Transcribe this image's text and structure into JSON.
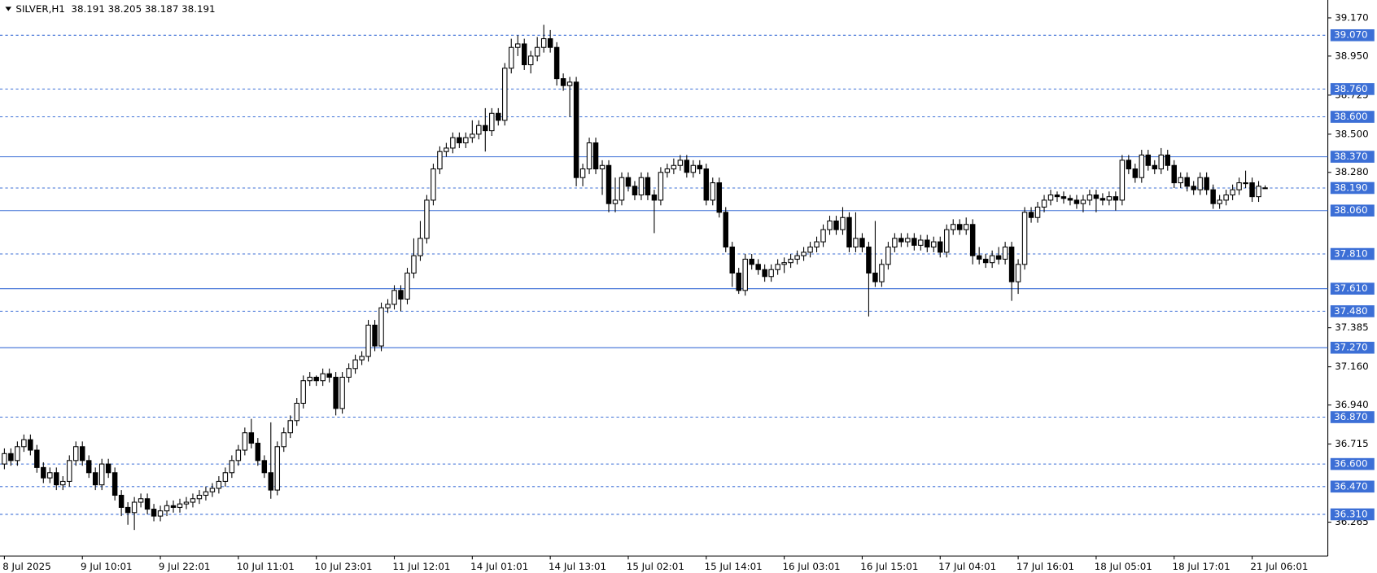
{
  "chart_data": {
    "type": "candlestick",
    "title": "SILVER,H1",
    "subtitle": "38.191 38.205 38.187 38.191",
    "categories": [
      "8 Jul 2025",
      null,
      null,
      null,
      null,
      null,
      null,
      null,
      null,
      null,
      null,
      null,
      "9 Jul 10:01",
      null,
      null,
      null,
      null,
      null,
      null,
      null,
      null,
      null,
      null,
      null,
      "9 Jul 22:01",
      null,
      null,
      null,
      null,
      null,
      null,
      null,
      null,
      null,
      null,
      null,
      "10 Jul 11:01",
      null,
      null,
      null,
      null,
      null,
      null,
      null,
      null,
      null,
      null,
      null,
      "10 Jul 23:01",
      null,
      null,
      null,
      null,
      null,
      null,
      null,
      null,
      null,
      null,
      null,
      "11 Jul 12:01",
      null,
      null,
      null,
      null,
      null,
      null,
      null,
      null,
      null,
      null,
      null,
      "14 Jul 01:01",
      null,
      null,
      null,
      null,
      null,
      null,
      null,
      null,
      null,
      null,
      null,
      "14 Jul 13:01",
      null,
      null,
      null,
      null,
      null,
      null,
      null,
      null,
      null,
      null,
      null,
      "15 Jul 02:01",
      null,
      null,
      null,
      null,
      null,
      null,
      null,
      null,
      null,
      null,
      null,
      "15 Jul 14:01",
      null,
      null,
      null,
      null,
      null,
      null,
      null,
      null,
      null,
      null,
      null,
      "16 Jul 03:01",
      null,
      null,
      null,
      null,
      null,
      null,
      null,
      null,
      null,
      null,
      null,
      "16 Jul 15:01",
      null,
      null,
      null,
      null,
      null,
      null,
      null,
      null,
      null,
      null,
      null,
      "17 Jul 04:01",
      null,
      null,
      null,
      null,
      null,
      null,
      null,
      null,
      null,
      null,
      null,
      "17 Jul 16:01",
      null,
      null,
      null,
      null,
      null,
      null,
      null,
      null,
      null,
      null,
      null,
      "18 Jul 05:01",
      null,
      null,
      null,
      null,
      null,
      null,
      null,
      null,
      null,
      null,
      null,
      "18 Jul 17:01",
      null,
      null,
      null,
      null,
      null,
      null,
      null,
      null,
      null,
      null,
      null,
      "21 Jul 06:01",
      null,
      null
    ],
    "open": [
      36.6,
      36.66,
      36.62,
      36.7,
      36.74,
      36.68,
      36.58,
      36.52,
      36.55,
      36.48,
      36.5,
      36.62,
      36.7,
      36.62,
      36.55,
      36.48,
      36.6,
      36.55,
      36.42,
      36.35,
      36.32,
      36.38,
      36.4,
      36.34,
      36.3,
      36.33,
      36.36,
      36.35,
      36.37,
      36.38,
      36.4,
      36.42,
      36.44,
      36.46,
      36.5,
      36.55,
      36.62,
      36.68,
      36.78,
      36.72,
      36.62,
      36.55,
      36.45,
      36.7,
      36.78,
      36.85,
      36.95,
      37.08,
      37.1,
      37.08,
      37.12,
      37.1,
      36.92,
      37.1,
      37.15,
      37.2,
      37.22,
      37.4,
      37.28,
      37.5,
      37.52,
      37.6,
      37.55,
      37.7,
      37.8,
      37.9,
      38.12,
      38.3,
      38.4,
      38.42,
      38.48,
      38.45,
      38.48,
      38.5,
      38.55,
      38.52,
      38.62,
      38.58,
      38.88,
      39.0,
      39.02,
      38.9,
      38.95,
      39.0,
      39.05,
      39.0,
      38.82,
      38.78,
      38.8,
      38.25,
      38.3,
      38.45,
      38.3,
      38.32,
      38.1,
      38.12,
      38.25,
      38.2,
      38.15,
      38.25,
      38.15,
      38.12,
      38.28,
      38.3,
      38.32,
      38.35,
      38.28,
      38.32,
      38.3,
      38.12,
      38.22,
      38.05,
      37.85,
      37.7,
      37.6,
      37.78,
      37.75,
      37.72,
      37.68,
      37.72,
      37.75,
      37.76,
      37.78,
      37.8,
      37.82,
      37.85,
      37.88,
      37.95,
      38.0,
      37.95,
      38.02,
      37.85,
      37.9,
      37.85,
      37.7,
      37.65,
      37.75,
      37.85,
      37.9,
      37.88,
      37.9,
      37.86,
      37.89,
      37.85,
      37.88,
      37.82,
      37.95,
      37.98,
      37.95,
      37.98,
      37.8,
      37.78,
      37.76,
      37.8,
      37.78,
      37.85,
      37.65,
      37.75,
      38.05,
      38.02,
      38.08,
      38.12,
      38.15,
      38.14,
      38.13,
      38.12,
      38.1,
      38.12,
      38.15,
      38.13,
      38.12,
      38.14,
      38.12,
      38.35,
      38.3,
      38.25,
      38.38,
      38.32,
      38.3,
      38.38,
      38.32,
      38.22,
      38.25,
      38.2,
      38.18,
      38.25,
      38.18,
      38.1,
      38.12,
      38.15,
      38.18,
      38.22,
      38.22,
      38.14,
      38.191
    ],
    "high": [
      36.69,
      36.69,
      36.73,
      36.77,
      36.77,
      36.71,
      36.61,
      36.58,
      36.58,
      36.53,
      36.65,
      36.73,
      36.73,
      36.65,
      36.58,
      36.63,
      36.63,
      36.58,
      36.45,
      36.38,
      36.41,
      36.43,
      36.43,
      36.37,
      36.36,
      36.39,
      36.39,
      36.4,
      36.41,
      36.43,
      36.45,
      36.47,
      36.49,
      36.53,
      36.58,
      36.65,
      36.71,
      36.81,
      36.86,
      36.75,
      36.65,
      36.84,
      36.73,
      36.81,
      36.88,
      36.98,
      37.11,
      37.13,
      37.11,
      37.15,
      37.15,
      37.13,
      37.13,
      37.18,
      37.23,
      37.25,
      37.43,
      37.43,
      37.53,
      37.55,
      37.63,
      37.63,
      37.73,
      37.9,
      38.0,
      38.15,
      38.33,
      38.43,
      38.45,
      38.51,
      38.51,
      38.51,
      38.58,
      38.58,
      38.65,
      38.65,
      38.65,
      38.91,
      39.05,
      39.07,
      39.05,
      38.98,
      39.06,
      39.13,
      39.1,
      39.03,
      38.85,
      38.83,
      38.83,
      38.33,
      38.48,
      38.48,
      38.35,
      38.35,
      38.25,
      38.28,
      38.28,
      38.23,
      38.28,
      38.28,
      38.18,
      38.31,
      38.33,
      38.36,
      38.38,
      38.38,
      38.35,
      38.35,
      38.33,
      38.25,
      38.25,
      38.08,
      37.88,
      37.73,
      37.81,
      37.81,
      37.78,
      37.75,
      37.75,
      37.78,
      37.79,
      37.81,
      37.83,
      37.85,
      37.88,
      37.91,
      37.98,
      38.03,
      38.03,
      38.08,
      38.05,
      38.05,
      37.93,
      37.88,
      38.0,
      37.78,
      37.88,
      37.93,
      37.93,
      37.93,
      37.93,
      37.92,
      37.92,
      37.91,
      37.91,
      37.98,
      38.01,
      38.01,
      38.02,
      38.01,
      37.85,
      37.81,
      37.83,
      37.85,
      37.88,
      37.88,
      37.78,
      38.08,
      38.08,
      38.11,
      38.15,
      38.18,
      38.17,
      38.17,
      38.15,
      38.15,
      38.15,
      38.18,
      38.18,
      38.16,
      38.17,
      38.17,
      38.38,
      38.38,
      38.33,
      38.41,
      38.41,
      38.35,
      38.42,
      38.41,
      38.35,
      38.28,
      38.28,
      38.23,
      38.28,
      38.28,
      38.21,
      38.15,
      38.18,
      38.21,
      38.25,
      38.29,
      38.25,
      38.23,
      38.205
    ],
    "low": [
      36.57,
      36.59,
      36.59,
      36.67,
      36.65,
      36.55,
      36.49,
      36.49,
      36.45,
      36.45,
      36.47,
      36.59,
      36.59,
      36.52,
      36.45,
      36.45,
      36.52,
      36.39,
      36.3,
      36.25,
      36.22,
      36.35,
      36.31,
      36.27,
      36.27,
      36.3,
      36.32,
      36.32,
      36.34,
      36.35,
      36.37,
      36.39,
      36.41,
      36.43,
      36.47,
      36.52,
      36.59,
      36.65,
      36.69,
      36.59,
      36.52,
      36.4,
      36.42,
      36.67,
      36.75,
      36.82,
      36.92,
      37.05,
      37.05,
      37.05,
      37.07,
      36.88,
      36.89,
      37.07,
      37.12,
      37.17,
      37.19,
      37.25,
      37.25,
      37.47,
      37.49,
      37.48,
      37.52,
      37.67,
      37.77,
      37.87,
      38.09,
      38.27,
      38.37,
      38.39,
      38.42,
      38.42,
      38.45,
      38.47,
      38.4,
      38.49,
      38.55,
      38.55,
      38.85,
      38.95,
      38.87,
      38.85,
      38.92,
      38.97,
      38.97,
      38.78,
      38.75,
      38.6,
      38.2,
      38.2,
      38.27,
      38.27,
      38.15,
      38.05,
      38.05,
      38.09,
      38.17,
      38.12,
      38.12,
      38.12,
      37.93,
      38.09,
      38.25,
      38.27,
      38.29,
      38.25,
      38.25,
      38.27,
      38.09,
      38.09,
      38.02,
      37.82,
      37.62,
      37.58,
      37.57,
      37.72,
      37.69,
      37.65,
      37.65,
      37.69,
      37.7,
      37.73,
      37.75,
      37.77,
      37.79,
      37.82,
      37.85,
      37.92,
      37.92,
      37.92,
      37.82,
      37.82,
      37.82,
      37.45,
      37.62,
      37.62,
      37.72,
      37.82,
      37.85,
      37.85,
      37.83,
      37.83,
      37.82,
      37.82,
      37.79,
      37.79,
      37.92,
      37.92,
      37.92,
      37.75,
      37.75,
      37.73,
      37.73,
      37.75,
      37.75,
      37.54,
      37.58,
      37.72,
      37.99,
      37.99,
      38.05,
      38.09,
      38.11,
      38.1,
      38.09,
      38.07,
      38.05,
      38.09,
      38.05,
      38.09,
      38.09,
      38.06,
      38.09,
      38.27,
      38.22,
      38.22,
      38.29,
      38.27,
      38.27,
      38.29,
      38.19,
      38.19,
      38.17,
      38.15,
      38.15,
      38.15,
      38.07,
      38.07,
      38.09,
      38.12,
      38.15,
      38.19,
      38.11,
      38.11,
      38.187
    ],
    "close": [
      36.66,
      36.62,
      36.7,
      36.74,
      36.68,
      36.58,
      36.52,
      36.55,
      36.48,
      36.5,
      36.62,
      36.7,
      36.62,
      36.55,
      36.48,
      36.6,
      36.55,
      36.42,
      36.35,
      36.32,
      36.38,
      36.4,
      36.34,
      36.3,
      36.33,
      36.36,
      36.35,
      36.37,
      36.38,
      36.4,
      36.42,
      36.44,
      36.46,
      36.5,
      36.55,
      36.62,
      36.68,
      36.78,
      36.72,
      36.62,
      36.55,
      36.45,
      36.7,
      36.78,
      36.85,
      36.95,
      37.08,
      37.1,
      37.08,
      37.12,
      37.1,
      36.92,
      37.1,
      37.15,
      37.2,
      37.22,
      37.4,
      37.28,
      37.5,
      37.52,
      37.6,
      37.55,
      37.7,
      37.8,
      37.9,
      38.12,
      38.3,
      38.4,
      38.42,
      38.48,
      38.45,
      38.48,
      38.5,
      38.55,
      38.52,
      38.62,
      38.58,
      38.88,
      39.0,
      39.02,
      38.9,
      38.95,
      39.0,
      39.05,
      39.0,
      38.82,
      38.78,
      38.8,
      38.25,
      38.3,
      38.45,
      38.3,
      38.32,
      38.1,
      38.12,
      38.25,
      38.2,
      38.15,
      38.25,
      38.15,
      38.12,
      38.28,
      38.3,
      38.32,
      38.35,
      38.28,
      38.32,
      38.3,
      38.12,
      38.22,
      38.05,
      37.85,
      37.7,
      37.6,
      37.78,
      37.75,
      37.72,
      37.68,
      37.72,
      37.75,
      37.76,
      37.78,
      37.8,
      37.82,
      37.85,
      37.88,
      37.95,
      38.0,
      37.95,
      38.02,
      37.85,
      37.9,
      37.85,
      37.7,
      37.65,
      37.75,
      37.85,
      37.9,
      37.88,
      37.9,
      37.86,
      37.89,
      37.85,
      37.88,
      37.82,
      37.95,
      37.98,
      37.95,
      37.98,
      37.8,
      37.78,
      37.76,
      37.8,
      37.78,
      37.85,
      37.65,
      37.75,
      38.05,
      38.02,
      38.08,
      38.12,
      38.15,
      38.14,
      38.13,
      38.12,
      38.1,
      38.12,
      38.15,
      38.13,
      38.12,
      38.14,
      38.12,
      38.35,
      38.3,
      38.25,
      38.38,
      38.32,
      38.3,
      38.38,
      38.32,
      38.22,
      38.25,
      38.2,
      38.18,
      38.25,
      38.18,
      38.1,
      38.12,
      38.15,
      38.18,
      38.22,
      38.22,
      38.14,
      38.2,
      38.191
    ],
    "ylim": [
      36.07,
      39.273
    ],
    "yticks": [
      {
        "value": 39.17,
        "label": "39.170"
      },
      {
        "value": 38.95,
        "label": "38.950"
      },
      {
        "value": 38.725,
        "label": "38.725"
      },
      {
        "value": 38.5,
        "label": "38.500"
      },
      {
        "value": 38.28,
        "label": "38.280"
      },
      {
        "value": 37.385,
        "label": "37.385"
      },
      {
        "value": 37.16,
        "label": "37.160"
      },
      {
        "value": 36.94,
        "label": "36.940"
      },
      {
        "value": 36.715,
        "label": "36.715"
      },
      {
        "value": 36.265,
        "label": "36.265"
      }
    ],
    "levels": [
      {
        "value": 39.07,
        "label": "39.070",
        "style": "dashed"
      },
      {
        "value": 38.76,
        "label": "38.760",
        "style": "dashed"
      },
      {
        "value": 38.6,
        "label": "38.600",
        "style": "dashed"
      },
      {
        "value": 38.37,
        "label": "38.370",
        "style": "solid"
      },
      {
        "value": 38.19,
        "label": "38.190",
        "style": "dashed"
      },
      {
        "value": 38.06,
        "label": "38.060",
        "style": "solid"
      },
      {
        "value": 37.81,
        "label": "37.810",
        "style": "dashed"
      },
      {
        "value": 37.61,
        "label": "37.610",
        "style": "solid"
      },
      {
        "value": 37.48,
        "label": "37.480",
        "style": "dashed"
      },
      {
        "value": 37.27,
        "label": "37.270",
        "style": "solid"
      },
      {
        "value": 36.87,
        "label": "36.870",
        "style": "dashed"
      },
      {
        "value": 36.6,
        "label": "36.600",
        "style": "dashed"
      },
      {
        "value": 36.47,
        "label": "36.470",
        "style": "dashed"
      },
      {
        "value": 36.31,
        "label": "36.310",
        "style": "dashed"
      }
    ],
    "level_color": "#3c6fd6",
    "up_color": "#ffffff",
    "down_color": "#000000"
  }
}
